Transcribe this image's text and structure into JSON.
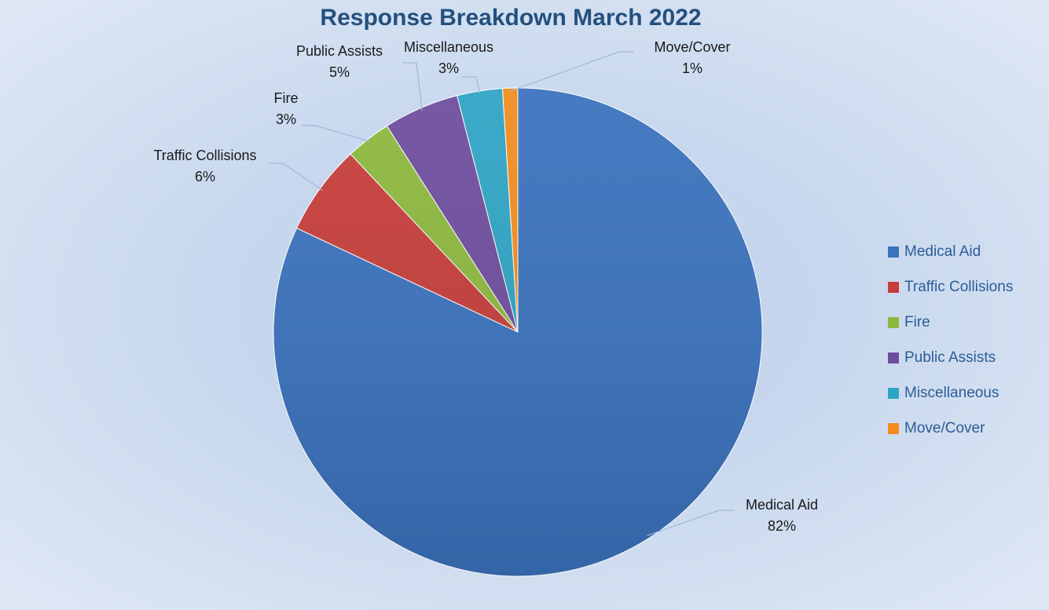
{
  "chart_data": {
    "type": "pie",
    "title": "Response Breakdown March 2022",
    "start": "12 o'clock",
    "direction": "clockwise",
    "legend_position": "right",
    "slices": [
      {
        "name": "Medical Aid",
        "value": 82,
        "label": "82%",
        "color": "#3a72bd"
      },
      {
        "name": "Traffic Collisions",
        "value": 6,
        "label": "6%",
        "color": "#c63d3a"
      },
      {
        "name": "Fire",
        "value": 3,
        "label": "3%",
        "color": "#8db83e"
      },
      {
        "name": "Public Assists",
        "value": 5,
        "label": "5%",
        "color": "#6e4d9e"
      },
      {
        "name": "Miscellaneous",
        "value": 3,
        "label": "3%",
        "color": "#2ea4c4"
      },
      {
        "name": "Move/Cover",
        "value": 1,
        "label": "1%",
        "color": "#f28c1e"
      }
    ]
  }
}
